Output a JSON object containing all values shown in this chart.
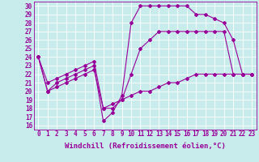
{
  "xlabel": "Windchill (Refroidissement éolien,°C)",
  "bg_color": "#c8ecec",
  "line_color": "#990099",
  "grid_color": "#ffffff",
  "xlim": [
    -0.5,
    23.5
  ],
  "ylim": [
    15.5,
    30.5
  ],
  "xticks": [
    0,
    1,
    2,
    3,
    4,
    5,
    6,
    7,
    8,
    9,
    10,
    11,
    12,
    13,
    14,
    15,
    16,
    17,
    18,
    19,
    20,
    21,
    22,
    23
  ],
  "yticks": [
    16,
    17,
    18,
    19,
    20,
    21,
    22,
    23,
    24,
    25,
    26,
    27,
    28,
    29,
    30
  ],
  "line1_x": [
    0,
    1,
    2,
    3,
    4,
    5,
    6,
    7,
    8,
    9,
    10,
    11,
    12,
    13,
    14,
    15,
    16,
    17,
    18,
    19,
    20,
    21,
    22,
    23
  ],
  "line1_y": [
    24,
    20,
    21,
    21.5,
    22,
    22.5,
    23,
    16.5,
    17.5,
    19.5,
    28,
    30,
    30,
    30,
    30,
    30,
    30,
    29,
    29,
    28.5,
    28,
    26,
    22,
    22
  ],
  "line2_x": [
    0,
    1,
    2,
    3,
    4,
    5,
    6,
    7,
    8,
    9,
    10,
    11,
    12,
    13,
    14,
    15,
    16,
    17,
    18,
    19,
    20,
    21,
    22,
    23
  ],
  "line2_y": [
    24,
    21,
    21.5,
    22,
    22.5,
    23,
    23.5,
    18,
    18,
    19,
    22,
    25,
    26,
    27,
    27,
    27,
    27,
    27,
    27,
    27,
    27,
    22,
    22,
    22
  ],
  "line3_x": [
    0,
    1,
    2,
    3,
    4,
    5,
    6,
    7,
    8,
    9,
    10,
    11,
    12,
    13,
    14,
    15,
    16,
    17,
    18,
    19,
    20,
    21,
    22,
    23
  ],
  "line3_y": [
    24,
    20,
    20.5,
    21,
    21.5,
    22,
    22.5,
    18,
    18.5,
    19,
    19.5,
    20,
    20,
    20.5,
    21,
    21,
    21.5,
    22,
    22,
    22,
    22,
    22,
    22,
    22
  ],
  "marker": "D",
  "markersize": 2.0,
  "linewidth": 0.8,
  "xlabel_fontsize": 6.5,
  "tick_fontsize": 5.5
}
